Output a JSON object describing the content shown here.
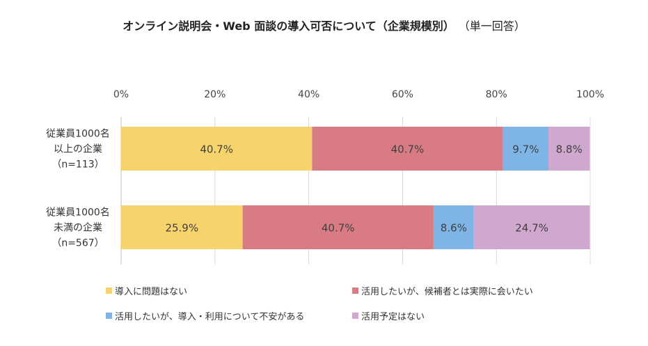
{
  "title": "オンライン説明会・Web 面談の導入可否について（企業規模別）",
  "subtitle": "（単一回答）",
  "chart_data": {
    "type": "bar",
    "orientation": "horizontal",
    "stacked": "percent",
    "title": "オンライン説明会・Web 面談の導入可否について（企業規模別）",
    "subtitle": "（単一回答）",
    "x_ticks": [
      "0%",
      "20%",
      "40%",
      "60%",
      "80%",
      "100%"
    ],
    "xlim": [
      0,
      100
    ],
    "grid": true,
    "legend_position": "bottom",
    "categories": [
      [
        "従業員1000名",
        "以上の企業",
        "（n=113）"
      ],
      [
        "従業員1000名",
        "未満の企業",
        "（n=567）"
      ]
    ],
    "series": [
      {
        "name": "導入に問題はない",
        "color": "#f7d46b",
        "values": [
          40.7,
          25.9
        ],
        "labels": [
          "40.7%",
          "25.9%"
        ]
      },
      {
        "name": "活用したいが、候補者とは実際に会いたい",
        "color": "#d97b84",
        "values": [
          40.7,
          40.7
        ],
        "labels": [
          "40.7%",
          "40.7%"
        ]
      },
      {
        "name": "活用したいが、導入・利用について不安がある",
        "color": "#7eb5e6",
        "values": [
          9.7,
          8.6
        ],
        "labels": [
          "9.7%",
          "8.6%"
        ]
      },
      {
        "name": "活用予定はない",
        "color": "#cfa7cf",
        "values": [
          8.8,
          24.7
        ],
        "labels": [
          "8.8%",
          "24.7%"
        ]
      }
    ]
  }
}
